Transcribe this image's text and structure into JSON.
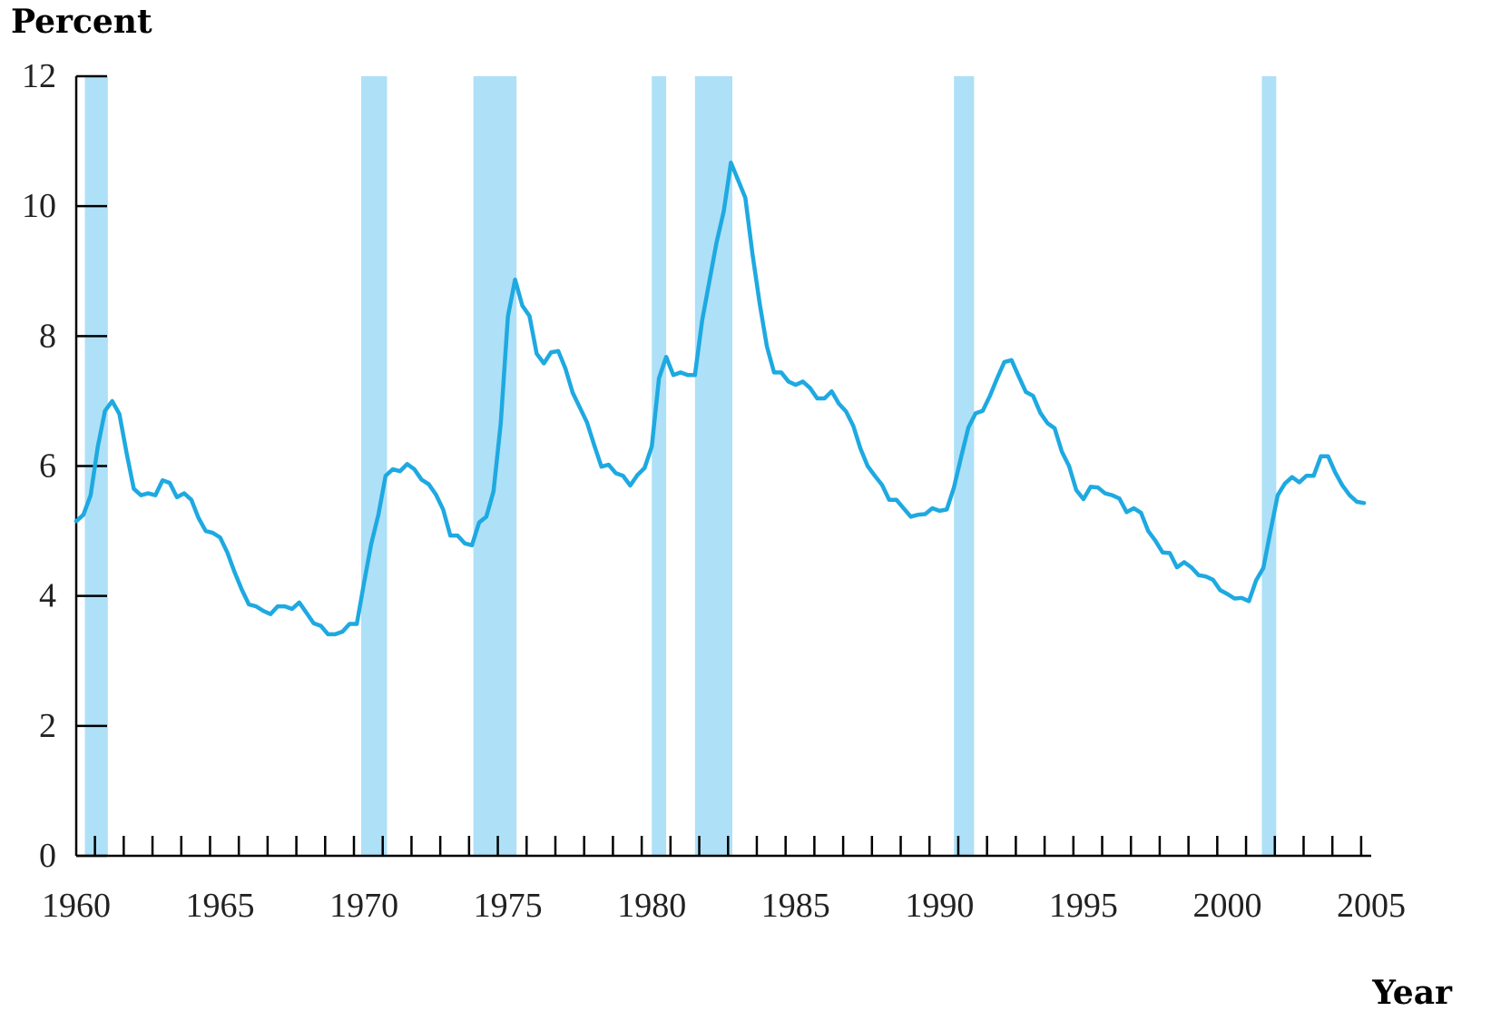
{
  "chart_data": {
    "type": "line",
    "title": "",
    "ylabel": "Percent",
    "xlabel": "Year",
    "ylim": [
      0,
      12
    ],
    "xlim": [
      1960,
      2005
    ],
    "y_ticks": [
      0,
      2,
      4,
      6,
      8,
      10,
      12
    ],
    "x_ticks": [
      1960,
      1965,
      1970,
      1975,
      1980,
      1985,
      1990,
      1995,
      2000,
      2005
    ],
    "x_minor_tick_step": 1,
    "grid": false,
    "shaded_periods": [
      [
        1960.3,
        1961.1
      ],
      [
        1969.9,
        1970.8
      ],
      [
        1973.8,
        1975.3
      ],
      [
        1980.0,
        1980.5
      ],
      [
        1981.5,
        1982.8
      ],
      [
        1990.5,
        1991.2
      ],
      [
        2001.2,
        2001.7
      ]
    ],
    "series": [
      {
        "color": "#1ea9e1",
        "x": [
          1960.0,
          1960.25,
          1960.5,
          1960.75,
          1961.0,
          1961.25,
          1961.5,
          1961.75,
          1962.0,
          1962.25,
          1962.5,
          1962.75,
          1963.0,
          1963.25,
          1963.5,
          1963.75,
          1964.0,
          1964.25,
          1964.5,
          1964.75,
          1965.0,
          1965.25,
          1965.5,
          1965.75,
          1966.0,
          1966.25,
          1966.5,
          1966.75,
          1967.0,
          1967.25,
          1967.5,
          1967.75,
          1968.0,
          1968.25,
          1968.5,
          1968.75,
          1969.0,
          1969.25,
          1969.5,
          1969.75,
          1970.0,
          1970.25,
          1970.5,
          1970.75,
          1971.0,
          1971.25,
          1971.5,
          1971.75,
          1972.0,
          1972.25,
          1972.5,
          1972.75,
          1973.0,
          1973.25,
          1973.5,
          1973.75,
          1974.0,
          1974.25,
          1974.5,
          1974.75,
          1975.0,
          1975.25,
          1975.5,
          1975.75,
          1976.0,
          1976.25,
          1976.5,
          1976.75,
          1977.0,
          1977.25,
          1977.5,
          1977.75,
          1978.0,
          1978.25,
          1978.5,
          1978.75,
          1979.0,
          1979.25,
          1979.5,
          1979.75,
          1980.0,
          1980.25,
          1980.5,
          1980.75,
          1981.0,
          1981.25,
          1981.5,
          1981.75,
          1982.0,
          1982.25,
          1982.5,
          1982.75,
          1983.0,
          1983.25,
          1983.5,
          1983.75,
          1984.0,
          1984.25,
          1984.5,
          1984.75,
          1985.0,
          1985.25,
          1985.5,
          1985.75,
          1986.0,
          1986.25,
          1986.5,
          1986.75,
          1987.0,
          1987.25,
          1987.5,
          1987.75,
          1988.0,
          1988.25,
          1988.5,
          1988.75,
          1989.0,
          1989.25,
          1989.5,
          1989.75,
          1990.0,
          1990.25,
          1990.5,
          1990.75,
          1991.0,
          1991.25,
          1991.5,
          1991.75,
          1992.0,
          1992.25,
          1992.5,
          1992.75,
          1993.0,
          1993.25,
          1993.5,
          1993.75,
          1994.0,
          1994.25,
          1994.5,
          1994.75,
          1995.0,
          1995.25,
          1995.5,
          1995.75,
          1996.0,
          1996.25,
          1996.5,
          1996.75,
          1997.0,
          1997.25,
          1997.5,
          1997.75,
          1998.0,
          1998.25,
          1998.5,
          1998.75,
          1999.0,
          1999.25,
          1999.5,
          1999.75,
          2000.0,
          2000.25,
          2000.5,
          2000.75,
          2001.0,
          2001.25,
          2001.5,
          2001.75,
          2002.0,
          2002.25,
          2002.5,
          2002.75,
          2003.0,
          2003.25,
          2003.5,
          2003.75,
          2004.0,
          2004.25,
          2004.5,
          2004.75
        ],
        "y": [
          5.15,
          5.25,
          5.55,
          6.3,
          6.85,
          7.0,
          6.8,
          6.2,
          5.65,
          5.55,
          5.58,
          5.55,
          5.78,
          5.74,
          5.52,
          5.58,
          5.48,
          5.2,
          5.0,
          4.97,
          4.9,
          4.67,
          4.37,
          4.1,
          3.87,
          3.84,
          3.77,
          3.72,
          3.84,
          3.84,
          3.8,
          3.9,
          3.74,
          3.58,
          3.54,
          3.41,
          3.41,
          3.45,
          3.57,
          3.57,
          4.2,
          4.8,
          5.25,
          5.85,
          5.95,
          5.92,
          6.03,
          5.95,
          5.79,
          5.72,
          5.56,
          5.33,
          4.93,
          4.93,
          4.81,
          4.78,
          5.13,
          5.22,
          5.61,
          6.65,
          8.3,
          8.87,
          8.47,
          8.31,
          7.73,
          7.58,
          7.75,
          7.77,
          7.5,
          7.13,
          6.9,
          6.67,
          6.32,
          5.99,
          6.02,
          5.89,
          5.85,
          5.7,
          5.86,
          5.97,
          6.3,
          7.35,
          7.68,
          7.4,
          7.44,
          7.4,
          7.4,
          8.24,
          8.84,
          9.44,
          9.92,
          10.67,
          10.4,
          10.13,
          9.26,
          8.5,
          7.84,
          7.44,
          7.44,
          7.3,
          7.25,
          7.3,
          7.2,
          7.04,
          7.04,
          7.15,
          6.96,
          6.84,
          6.62,
          6.27,
          6.0,
          5.85,
          5.71,
          5.48,
          5.48,
          5.35,
          5.22,
          5.25,
          5.26,
          5.35,
          5.31,
          5.33,
          5.67,
          6.14,
          6.59,
          6.81,
          6.85,
          7.08,
          7.35,
          7.6,
          7.63,
          7.38,
          7.14,
          7.08,
          6.82,
          6.66,
          6.58,
          6.22,
          6.0,
          5.63,
          5.49,
          5.68,
          5.67,
          5.58,
          5.55,
          5.5,
          5.29,
          5.35,
          5.28,
          5.0,
          4.85,
          4.67,
          4.66,
          4.44,
          4.52,
          4.44,
          4.32,
          4.3,
          4.25,
          4.09,
          4.03,
          3.96,
          3.97,
          3.92,
          4.24,
          4.43,
          5.0,
          5.55,
          5.73,
          5.83,
          5.75,
          5.85,
          5.85,
          6.15,
          6.15,
          5.9,
          5.7,
          5.55,
          5.45,
          5.43
        ]
      }
    ]
  }
}
